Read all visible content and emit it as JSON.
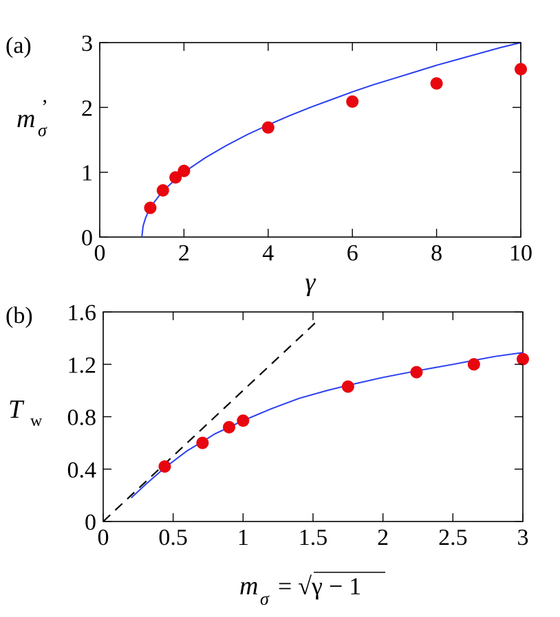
{
  "chart_data": [
    {
      "type": "scatter",
      "panel_label": "(a)",
      "xlabel": "γ",
      "ylabel": {
        "base": "m",
        "sub": "σ",
        "sup": "’"
      },
      "xlim": [
        0,
        10
      ],
      "ylim": [
        0,
        3
      ],
      "xticks": [
        "0",
        "2",
        "4",
        "6",
        "8",
        "10"
      ],
      "yticks": [
        "0",
        "1",
        "2",
        "3"
      ],
      "grid": false,
      "series": [
        {
          "kind": "line",
          "color": "#2b3ff0",
          "x": [
            1.0,
            1.03,
            1.08,
            1.15,
            1.25,
            1.4,
            1.6,
            1.8,
            2.0,
            2.5,
            3.0,
            3.5,
            4.0,
            4.5,
            5.0,
            5.5,
            6.0,
            6.5,
            7.0,
            7.5,
            8.0,
            8.5,
            9.0,
            9.5,
            10.0
          ],
          "y": [
            0.0,
            0.17,
            0.28,
            0.39,
            0.5,
            0.63,
            0.77,
            0.89,
            1.0,
            1.22,
            1.41,
            1.58,
            1.73,
            1.87,
            2.0,
            2.12,
            2.24,
            2.35,
            2.45,
            2.55,
            2.65,
            2.74,
            2.83,
            2.92,
            3.0
          ]
        },
        {
          "kind": "points",
          "color": "#e8060f",
          "x": [
            1.2,
            1.5,
            1.8,
            2.0,
            4.0,
            6.0,
            8.0,
            10.0
          ],
          "y": [
            0.45,
            0.72,
            0.92,
            1.02,
            1.69,
            2.09,
            2.37,
            2.59
          ]
        }
      ]
    },
    {
      "type": "scatter",
      "panel_label": "(b)",
      "xlabel": {
        "base": "m",
        "sub": "σ",
        "rest": "= √γ − 1"
      },
      "ylabel": {
        "base": "T",
        "sub": "w"
      },
      "xlim": [
        0,
        3
      ],
      "ylim": [
        0,
        1.6
      ],
      "xticks": [
        "0",
        "0.5",
        "1",
        "1.5",
        "2",
        "2.5",
        "3"
      ],
      "yticks": [
        "0",
        "0.4",
        "0.8",
        "1.2",
        "1.6"
      ],
      "grid": false,
      "series": [
        {
          "kind": "dashed-line",
          "color": "#000000",
          "x": [
            0.0,
            1.53
          ],
          "y": [
            0.0,
            1.53
          ]
        },
        {
          "kind": "line",
          "color": "#2b3ff0",
          "x": [
            0.2,
            0.3,
            0.44,
            0.6,
            0.71,
            0.8,
            0.9,
            1.0,
            1.2,
            1.4,
            1.6,
            1.75,
            2.0,
            2.24,
            2.5,
            2.65,
            2.8,
            3.0
          ],
          "y": [
            0.18,
            0.28,
            0.41,
            0.54,
            0.61,
            0.67,
            0.72,
            0.77,
            0.86,
            0.94,
            1.0,
            1.04,
            1.1,
            1.15,
            1.2,
            1.23,
            1.26,
            1.29
          ]
        },
        {
          "kind": "points",
          "color": "#e8060f",
          "x": [
            0.44,
            0.71,
            0.9,
            1.0,
            1.75,
            2.24,
            2.65,
            3.0
          ],
          "y": [
            0.42,
            0.6,
            0.72,
            0.77,
            1.03,
            1.14,
            1.2,
            1.24
          ]
        }
      ]
    }
  ]
}
